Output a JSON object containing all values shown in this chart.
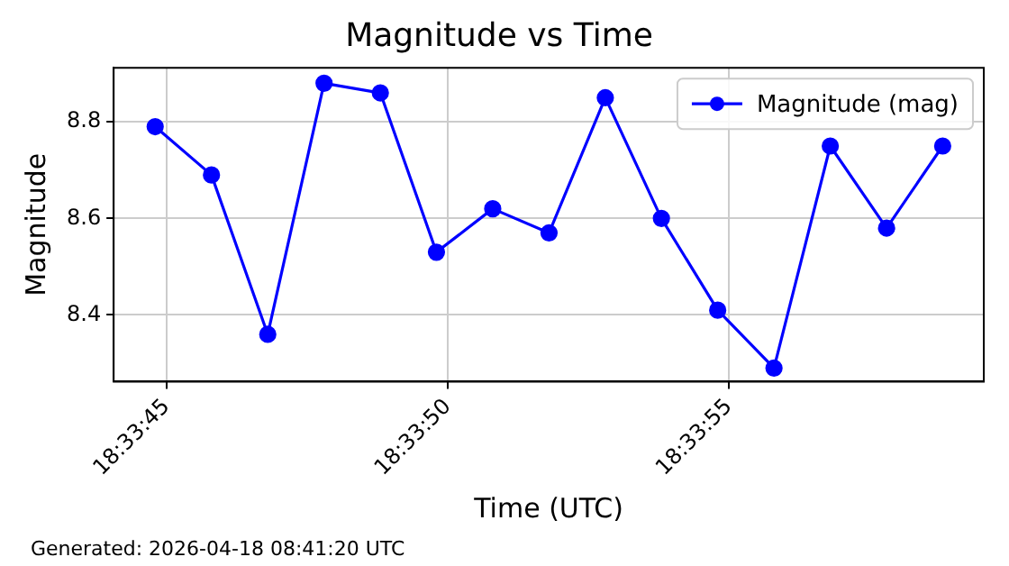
{
  "chart_data": {
    "type": "line",
    "title": "Magnitude vs Time",
    "xlabel": "Time (UTC)",
    "ylabel": "Magnitude",
    "x": [
      18.562444,
      18.562722,
      18.563,
      18.563278,
      18.563556,
      18.563833,
      18.564111,
      18.564389,
      18.564667,
      18.564944,
      18.565222,
      18.5655,
      18.565778,
      18.566056,
      18.566333
    ],
    "series": [
      {
        "name": "Magnitude (mag)",
        "color": "#0000ff",
        "values": [
          8.79,
          8.69,
          8.36,
          8.88,
          8.86,
          8.53,
          8.62,
          8.57,
          8.85,
          8.6,
          8.41,
          8.29,
          8.75,
          8.58,
          8.75
        ]
      }
    ],
    "xlim": [
      18.562239,
      18.566536
    ],
    "xticks": [
      {
        "value": 18.5625,
        "label": "18:33:45"
      },
      {
        "value": 18.563889,
        "label": "18:33:50"
      },
      {
        "value": 18.565278,
        "label": "18:33:55"
      }
    ],
    "ylim": [
      8.262,
      8.912
    ],
    "yticks": [
      {
        "value": 8.4,
        "label": "8.4"
      },
      {
        "value": 8.6,
        "label": "8.6"
      },
      {
        "value": 8.8,
        "label": "8.8"
      }
    ],
    "grid": true,
    "legend": "top right",
    "marker": "circle",
    "line_style": "solid",
    "annotations": [
      "Generated: 2026-04-18 08:41:20 UTC"
    ]
  }
}
